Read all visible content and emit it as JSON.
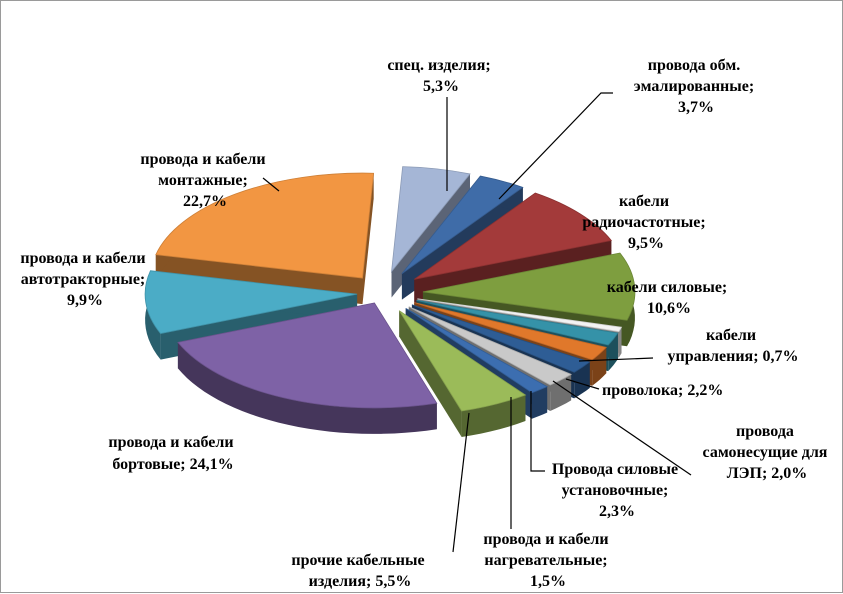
{
  "chart_data": {
    "type": "pie",
    "style": "exploded-3d-pie",
    "title": "",
    "slices": [
      {
        "label": "спец. изделия;",
        "pct": "5,3%",
        "value": 5.3,
        "color": "#A5B6D6"
      },
      {
        "label": "провода обм. эмалированные;",
        "pct": "3,7%",
        "value": 3.7,
        "color": "#3F6CA8"
      },
      {
        "label": "кабели радиочастотные;",
        "pct": "9,5%",
        "value": 9.5,
        "color": "#A33A3A"
      },
      {
        "label": "кабели силовые;",
        "pct": "10,6%",
        "value": 10.6,
        "color": "#7E9E3F"
      },
      {
        "label": "кабели управления; 0,7%",
        "pct": "",
        "value": 0.7,
        "color": "#F3F3F3"
      },
      {
        "label": "",
        "pct": "",
        "value": 2.0,
        "color": "#3592A8"
      },
      {
        "label": "проволока; 2,2%",
        "pct": "",
        "value": 2.2,
        "color": "#E0782B"
      },
      {
        "label": "провода самонесущие для ЛЭП; 2,0%",
        "pct": "",
        "value": 2.0,
        "color": "#2E5D95"
      },
      {
        "label": "Провода силовые установочные;",
        "pct": "2,3%",
        "value": 2.3,
        "color": "#C9C9C9"
      },
      {
        "label": "провода и кабели нагревательные;",
        "pct": "1,5%",
        "value": 1.5,
        "color": "#3C6EB0"
      },
      {
        "label": "прочие кабельные изделия; 5,5%",
        "pct": "",
        "value": 5.5,
        "color": "#9BBB59"
      },
      {
        "label": "провода и кабели бортовые; 24,1%",
        "pct": "",
        "value": 24.1,
        "color": "#7E62A6"
      },
      {
        "label": "провода и кабели автотракторные;",
        "pct": "9,9%",
        "value": 9.9,
        "color": "#4BACC6"
      },
      {
        "label": "провода и кабели монтажные;",
        "pct": "22,7%",
        "value": 22.7,
        "color": "#F29642"
      }
    ]
  },
  "labels": {
    "spec_1": "спец. изделия;",
    "spec_2": "5,3%",
    "obm_1": "провода обм.",
    "obm_2": "эмалированные;",
    "obm_3": "3,7%",
    "radio_1": "кабели",
    "radio_2": "радиочастотные;",
    "radio_3": "9,5%",
    "sil_1": "кабели силовые;",
    "sil_2": "10,6%",
    "upr_1": "кабели",
    "upr_2": "управления; 0,7%",
    "prov": "проволока; 2,2%",
    "samo_1": "провода",
    "samo_2": "самонесущие для",
    "samo_3": "ЛЭП; 2,0%",
    "ust_1": "Провода силовые",
    "ust_2": "установочные;",
    "ust_3": "2,3%",
    "nagr_1": "провода и кабели",
    "nagr_2": "нагревательные;",
    "nagr_3": "1,5%",
    "proch_1": "прочие кабельные",
    "proch_2": "изделия; 5,5%",
    "bort_1": "провода и кабели",
    "bort_2": "бортовые; 24,1%",
    "avto_1": "провода и кабели",
    "avto_2": "автотракторные;",
    "avto_3": "9,9%",
    "mont_1": "провода и кабели",
    "mont_2": "монтажные;",
    "mont_3": "22,7%"
  }
}
